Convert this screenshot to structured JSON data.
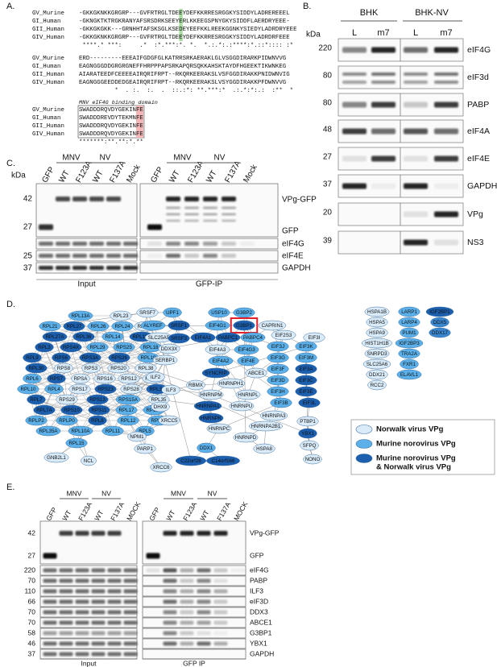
{
  "panel_labels": [
    "A.",
    "B.",
    "C.",
    "D.",
    "E."
  ],
  "panel_a": {
    "domain_label": "MNV eIF4G binding domain",
    "blocks": [
      {
        "rows": [
          {
            "name": "GV_Murine",
            "seq": "-GKKGKNKKGRGRP---GVFRTRGLTDEEYDEFKKRRESRGGKYSIDDYLADREREEEL"
          },
          {
            "name": "GI_Human",
            "seq": "-GKNGKTKTRGKRANYAFSRSDRKSEEYERLKKEEGSPNYGKYSIDDFLAERDRYEEE-"
          },
          {
            "name": "GII_Human",
            "seq": "-GKKGKGKK---GRNHHTAFSKSGLKSEDEYEEFKKLREEKGGNKYSIEDYLADRDRYEEE"
          },
          {
            "name": "GIV_Human",
            "seq": "-GKKGKNKKGRGRP---GVFRTRGLTDEEYDEFKKRRESRGGKYSIDDYLADRDRFEEE"
          }
        ],
        "conservation": " ****.* ***:     .*  :*.***:*. *.  *.:.*:.:****:*.::*:::: :*"
      },
      {
        "rows": [
          {
            "name": "GV_Murine",
            "seq": "ERD---------EEEAIFGDGFGLKATRRSRKAERAKLGLVSGGDIRARKPIDWNVVG"
          },
          {
            "name": "GI_Human",
            "seq": "EAGNGGGDDGRGRGNEFFHRPPPAPSRKAPQRSQKKAHSKTAYDFHGEEKTIKWNKEG"
          },
          {
            "name": "GII_Human",
            "seq": "AIARATEEDFCEEEEAIRQRIFRPT--RKQRKEERAKSLVSFGGDIRAKKPNIDWNVIG"
          },
          {
            "name": "GIV_Human",
            "seq": "EAGNGGGEEDDEDGEAIRQRIFRPT--RKQRKEERAKSLVSYGGDIRAKKPFDWNVVG"
          }
        ],
        "conservation": "          *  . :.  :.  .  ::.:*: **.***:*  .:.*:*:.:  :**  *"
      },
      {
        "rows": [
          {
            "name": "GV_Murine",
            "seq": "SWADDDRQVDYGEKINFE"
          },
          {
            "name": "GI_Human",
            "seq": "SWADDDREVDYTEKMNFE"
          },
          {
            "name": "GII_Human",
            "seq": "SWADDDRQVDYGEKINFE"
          },
          {
            "name": "GIV_Human",
            "seq": "SWADDDRQVDYGEKINFE"
          }
        ],
        "conservation": "*******:**.**:*.**"
      }
    ]
  },
  "panel_b": {
    "kda_title": "kDa",
    "groups": [
      "BHK",
      "BHK-NV"
    ],
    "lanes": [
      "L",
      "m7",
      "L",
      "m7"
    ],
    "rows": [
      {
        "kda": 220,
        "protein": "eIF4G"
      },
      {
        "kda": 80,
        "protein": "eIF3d"
      },
      {
        "kda": 80,
        "protein": "PABP"
      },
      {
        "kda": 48,
        "protein": "eIF4A"
      },
      {
        "kda": 27,
        "protein": "eIF4E"
      },
      {
        "kda": 37,
        "protein": "GAPDH"
      },
      {
        "kda": 20,
        "protein": "VPg"
      },
      {
        "kda": 39,
        "protein": "NS3"
      }
    ]
  },
  "panel_c": {
    "kda_title": "kDa",
    "markers": [
      42,
      27,
      25,
      37
    ],
    "proteins": [
      "VPg-GFP",
      "GFP",
      "eIF4G",
      "eIF4E",
      "GAPDH"
    ],
    "sections": [
      {
        "title": "Input",
        "groups": [
          "MNV",
          "NV"
        ],
        "lanes": [
          "GFP",
          "WT",
          "F123A",
          "WT",
          "F137A",
          "Mock"
        ]
      },
      {
        "title": "GFP-IP",
        "groups": [
          "MNV",
          "NV"
        ],
        "lanes": [
          "GFP",
          "WT",
          "F123A",
          "WT",
          "F137A",
          "Mock"
        ]
      }
    ]
  },
  "panel_d": {
    "nodes": [
      {
        "label": "RPL13A",
        "color": "#5bb0ea"
      },
      {
        "label": "RPL23",
        "color": "#d9ebf9"
      },
      {
        "label": "RPL21",
        "color": "#5bb0ea"
      },
      {
        "label": "RPL27",
        "color": "#1b5fae"
      },
      {
        "label": "RPL26",
        "color": "#5bb0ea"
      },
      {
        "label": "RPL24",
        "color": "#5bb0ea"
      },
      {
        "label": "RPL23A",
        "color": "#d9ebf9"
      },
      {
        "label": "RPL27A",
        "color": "#1b5fae"
      },
      {
        "label": "RPL36",
        "color": "#1b5fae"
      },
      {
        "label": "RPL14",
        "color": "#5bb0ea"
      },
      {
        "label": "RPL18A",
        "color": "#1b5fae"
      },
      {
        "label": "RPL3",
        "color": "#1b5fae"
      },
      {
        "label": "RPS4X",
        "color": "#1b5fae"
      },
      {
        "label": "RPL29",
        "color": "#5bb0ea"
      },
      {
        "label": "RPS25",
        "color": "#5bb0ea"
      },
      {
        "label": "RPL18",
        "color": "#5bb0ea"
      },
      {
        "label": "RPL9",
        "color": "#1b5fae"
      },
      {
        "label": "RPS6",
        "color": "#1b5fae"
      },
      {
        "label": "RPS3A",
        "color": "#1b5fae"
      },
      {
        "label": "RPS26",
        "color": "#1b5fae"
      },
      {
        "label": "RPL19",
        "color": "#5bb0ea"
      },
      {
        "label": "RPL30",
        "color": "#1b5fae"
      },
      {
        "label": "RPS8",
        "color": "#d9ebf9"
      },
      {
        "label": "RPS3",
        "color": "#d9ebf9"
      },
      {
        "label": "RPS20",
        "color": "#d9ebf9"
      },
      {
        "label": "RPL38",
        "color": "#d9ebf9"
      },
      {
        "label": "RPL6",
        "color": "#5bb0ea"
      },
      {
        "label": "RPS7",
        "color": "#1b5fae"
      },
      {
        "label": "RPSA",
        "color": "#d9ebf9"
      },
      {
        "label": "RPS16",
        "color": "#d9ebf9"
      },
      {
        "label": "RPS12",
        "color": "#d9ebf9"
      },
      {
        "label": "RPS19",
        "color": "#d9ebf9"
      },
      {
        "label": "RPL10",
        "color": "#5bb0ea"
      },
      {
        "label": "RPL4",
        "color": "#5bb0ea"
      },
      {
        "label": "RPS17",
        "color": "#d9ebf9"
      },
      {
        "label": "RPS23",
        "color": "#1b5fae"
      },
      {
        "label": "RPS28",
        "color": "#d9ebf9"
      },
      {
        "label": "RPL32",
        "color": "#1b5fae"
      },
      {
        "label": "RPL7",
        "color": "#1b5fae"
      },
      {
        "label": "RPS29",
        "color": "#d9ebf9"
      },
      {
        "label": "RPS13",
        "color": "#1b5fae"
      },
      {
        "label": "RPS15A",
        "color": "#5bb0ea"
      },
      {
        "label": "RPL35",
        "color": "#d9ebf9"
      },
      {
        "label": "RPL7A",
        "color": "#1b5fae"
      },
      {
        "label": "RPS10",
        "color": "#1b5fae"
      },
      {
        "label": "RPS11",
        "color": "#1b5fae"
      },
      {
        "label": "RPL17",
        "color": "#5bb0ea"
      },
      {
        "label": "RPL13",
        "color": "#5bb0ea"
      },
      {
        "label": "RPLP2",
        "color": "#5bb0ea"
      },
      {
        "label": "RPLP0",
        "color": "#5bb0ea"
      },
      {
        "label": "RPL8",
        "color": "#1b5fae"
      },
      {
        "label": "RPL12",
        "color": "#5bb0ea"
      },
      {
        "label": "RPL28",
        "color": "#5bb0ea"
      },
      {
        "label": "RPL35A",
        "color": "#5bb0ea"
      },
      {
        "label": "RPL10A",
        "color": "#5bb0ea"
      },
      {
        "label": "RPL11",
        "color": "#5bb0ea"
      },
      {
        "label": "RPL5",
        "color": "#5bb0ea"
      },
      {
        "label": "GNB2L1",
        "color": "#d9ebf9"
      },
      {
        "label": "RPL15",
        "color": "#5bb0ea"
      },
      {
        "label": "NCL",
        "color": "#d9ebf9"
      },
      {
        "label": "SRSF7",
        "color": "#d9ebf9"
      },
      {
        "label": "UPF1",
        "color": "#5bb0ea"
      },
      {
        "label": "ALYREF",
        "color": "#5bb0ea"
      },
      {
        "label": "SRSF1",
        "color": "#1b5fae"
      },
      {
        "label": "SLC25A5",
        "color": "#d9ebf9"
      },
      {
        "label": "SRSF3",
        "color": "#1b5fae"
      },
      {
        "label": "DDX3X",
        "color": "#d9ebf9"
      },
      {
        "label": "SERBP1",
        "color": "#d9ebf9"
      },
      {
        "label": "ILF2",
        "color": "#d9ebf9"
      },
      {
        "label": "ILF3",
        "color": "#d9ebf9"
      },
      {
        "label": "DHX9",
        "color": "#d9ebf9"
      },
      {
        "label": "RBMX",
        "color": "#d9ebf9"
      },
      {
        "label": "XRCC5",
        "color": "#d9ebf9"
      },
      {
        "label": "NPM1",
        "color": "#d9ebf9"
      },
      {
        "label": "PARP1",
        "color": "#d9ebf9"
      },
      {
        "label": "XRCC6",
        "color": "#d9ebf9"
      },
      {
        "label": "DDX1",
        "color": "#5bb0ea"
      },
      {
        "label": "C22orf28",
        "color": "#1b5fae"
      },
      {
        "label": "C14orf166",
        "color": "#1b5fae"
      },
      {
        "label": "USP10",
        "color": "#5bb0ea"
      },
      {
        "label": "G3BP2",
        "color": "#5bb0ea"
      },
      {
        "label": "G3BP1",
        "color": "#1b5fae"
      },
      {
        "label": "CAPRIN1",
        "color": "#d9ebf9"
      },
      {
        "label": "EIF4G1",
        "color": "#5bb0ea"
      },
      {
        "label": "EIF4A1",
        "color": "#1b5fae"
      },
      {
        "label": "PABPC1",
        "color": "#1b5fae"
      },
      {
        "label": "PABPC4",
        "color": "#5bb0ea"
      },
      {
        "label": "EIF4G3",
        "color": "#5bb0ea"
      },
      {
        "label": "EIF4A3",
        "color": "#d9ebf9"
      },
      {
        "label": "EIF4A2",
        "color": "#5bb0ea"
      },
      {
        "label": "EIF4E",
        "color": "#5bb0ea"
      },
      {
        "label": "SYNCRIP",
        "color": "#1b5fae"
      },
      {
        "label": "ABCE1",
        "color": "#d9ebf9"
      },
      {
        "label": "HNRNPH1",
        "color": "#d9ebf9"
      },
      {
        "label": "HNRNPM",
        "color": "#d9ebf9"
      },
      {
        "label": "HNRNPL",
        "color": "#d9ebf9"
      },
      {
        "label": "HNRNPA1",
        "color": "#1b5fae"
      },
      {
        "label": "HNRNPU",
        "color": "#d9ebf9"
      },
      {
        "label": "HNRNPA3",
        "color": "#d9ebf9"
      },
      {
        "label": "HNRNPK",
        "color": "#1b5fae"
      },
      {
        "label": "HNRNPA2B1",
        "color": "#d9ebf9"
      },
      {
        "label": "HNRNPC",
        "color": "#d9ebf9"
      },
      {
        "label": "HNRNPD",
        "color": "#d9ebf9"
      },
      {
        "label": "PTBP1",
        "color": "#d9ebf9"
      },
      {
        "label": "YBX1",
        "color": "#1b5fae"
      },
      {
        "label": "SFPQ",
        "color": "#d9ebf9"
      },
      {
        "label": "NONO",
        "color": "#d9ebf9"
      },
      {
        "label": "HSPA8",
        "color": "#d9ebf9"
      },
      {
        "label": "EIF2S3",
        "color": "#d9ebf9"
      },
      {
        "label": "EIF3I",
        "color": "#d9ebf9"
      },
      {
        "label": "EIF3J",
        "color": "#5bb0ea"
      },
      {
        "label": "EIF3K",
        "color": "#5bb0ea"
      },
      {
        "label": "EIF3G",
        "color": "#5bb0ea"
      },
      {
        "label": "EIF3M",
        "color": "#5bb0ea"
      },
      {
        "label": "EIF3F",
        "color": "#5bb0ea"
      },
      {
        "label": "EIF3A",
        "color": "#1b5fae"
      },
      {
        "label": "EIF3D",
        "color": "#5bb0ea"
      },
      {
        "label": "EIF3C",
        "color": "#1b5fae"
      },
      {
        "label": "EIF3H",
        "color": "#5bb0ea"
      },
      {
        "label": "EIF3E",
        "color": "#1b5fae"
      },
      {
        "label": "EIF3B",
        "color": "#5bb0ea"
      },
      {
        "label": "EIF3L",
        "color": "#1b5fae"
      },
      {
        "label": "HSPA1B",
        "color": "#d9ebf9"
      },
      {
        "label": "HSPA5",
        "color": "#d9ebf9"
      },
      {
        "label": "HSPA9",
        "color": "#d9ebf9"
      },
      {
        "label": "HIST1H1B",
        "color": "#d9ebf9"
      },
      {
        "label": "SNRPD3",
        "color": "#d9ebf9"
      },
      {
        "label": "SLC25A6",
        "color": "#d9ebf9"
      },
      {
        "label": "DDX21",
        "color": "#d9ebf9"
      },
      {
        "label": "RCC2",
        "color": "#d9ebf9"
      },
      {
        "label": "LARP1",
        "color": "#5bb0ea"
      },
      {
        "label": "LARP4",
        "color": "#5bb0ea"
      },
      {
        "label": "PUM1",
        "color": "#5bb0ea"
      },
      {
        "label": "IGF2BP3",
        "color": "#5bb0ea"
      },
      {
        "label": "TRA2A",
        "color": "#5bb0ea"
      },
      {
        "label": "FXR1",
        "color": "#5bb0ea"
      },
      {
        "label": "ELAVL1",
        "color": "#5bb0ea"
      },
      {
        "label": "IGF2BP1",
        "color": "#1b5fae"
      },
      {
        "label": "DDX5",
        "color": "#3a86cf"
      },
      {
        "label": "DDX17",
        "color": "#3a86cf"
      }
    ],
    "legend": [
      {
        "lines": [
          "Norwalk virus VPg"
        ],
        "color": "#d9ebf9"
      },
      {
        "lines": [
          "Murine norovirus VPg"
        ],
        "color": "#5bb0ea"
      },
      {
        "lines": [
          "Murine norovirus VPg",
          "& Norwalk virus VPg"
        ],
        "color": "#1b5fae"
      }
    ]
  },
  "panel_e": {
    "markers": [
      42,
      27,
      220,
      70,
      110,
      66,
      70,
      70,
      58,
      46,
      37
    ],
    "proteins": [
      "VPg-GFP",
      "GFP",
      "eIF4G",
      "PABP",
      "ILF3",
      "eIF3D",
      "DDX3",
      "ABCE1",
      "G3BP1",
      "YBX1",
      "GAPDH"
    ],
    "sections": [
      {
        "title": "Input",
        "groups": [
          "MNV",
          "NV"
        ],
        "lanes": [
          "GFP",
          "WT",
          "F123A",
          "WT",
          "F137A",
          "MOCK"
        ]
      },
      {
        "title": "GFP IP",
        "groups": [
          "MNV",
          "NV"
        ],
        "lanes": [
          "GFP",
          "WT",
          "F123A",
          "WT",
          "F137A",
          "MOCK"
        ]
      }
    ]
  }
}
